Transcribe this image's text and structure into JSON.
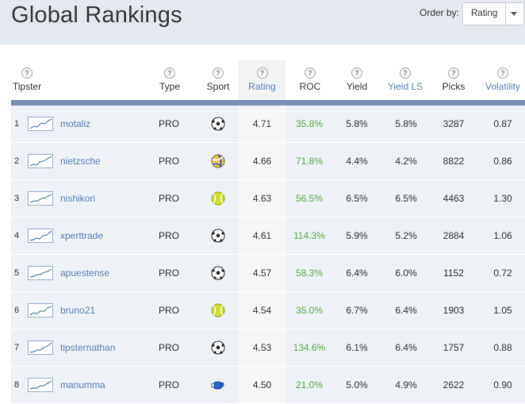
{
  "page": {
    "title": "Global Rankings"
  },
  "order": {
    "label": "Order by:",
    "selected": "Rating"
  },
  "columns": {
    "tipster": "Tipster",
    "type": "Type",
    "sport": "Sport",
    "rating": "Rating",
    "roc": "ROC",
    "yield": "Yield",
    "yield_ls": "Yield LS",
    "picks": "Picks",
    "volatility": "Volatility",
    "help_glyph": "?"
  },
  "colors": {
    "accent_link": "#5b7fb4",
    "roc_green": "#5aa84a",
    "header_rule": "#7b8fb3",
    "topbar": "#e4e9ef"
  },
  "rows": [
    {
      "rank": "1",
      "name": "motaliz",
      "type": "PRO",
      "sport": "soccer-ball-icon",
      "rating": "4.71",
      "roc": "35.8%",
      "yield": "5.8%",
      "yield_ls": "5.8%",
      "picks": "3287",
      "volatility": "0.87"
    },
    {
      "rank": "2",
      "name": "nietzsche",
      "type": "PRO",
      "sport": "volleyball-icon",
      "rating": "4.66",
      "roc": "71.8%",
      "yield": "4.4%",
      "yield_ls": "4.2%",
      "picks": "8822",
      "volatility": "0.86"
    },
    {
      "rank": "3",
      "name": "nishikori",
      "type": "PRO",
      "sport": "tennis-ball-icon",
      "rating": "4.63",
      "roc": "56.5%",
      "yield": "6.5%",
      "yield_ls": "6.5%",
      "picks": "4463",
      "volatility": "1.30"
    },
    {
      "rank": "4",
      "name": "xperttrade",
      "type": "PRO",
      "sport": "soccer-ball-icon",
      "rating": "4.61",
      "roc": "114.3%",
      "yield": "5.9%",
      "yield_ls": "5.2%",
      "picks": "2884",
      "volatility": "1.06"
    },
    {
      "rank": "5",
      "name": "apuestense",
      "type": "PRO",
      "sport": "soccer-ball-icon",
      "rating": "4.57",
      "roc": "58.3%",
      "yield": "6.4%",
      "yield_ls": "6.0%",
      "picks": "1152",
      "volatility": "0.72"
    },
    {
      "rank": "6",
      "name": "bruno21",
      "type": "PRO",
      "sport": "tennis-ball-icon",
      "rating": "4.54",
      "roc": "35.0%",
      "yield": "6.7%",
      "yield_ls": "6.4%",
      "picks": "1903",
      "volatility": "1.05"
    },
    {
      "rank": "7",
      "name": "tipsternathan",
      "type": "PRO",
      "sport": "soccer-ball-icon",
      "rating": "4.53",
      "roc": "134.6%",
      "yield": "6.1%",
      "yield_ls": "6.4%",
      "picks": "1757",
      "volatility": "0.88"
    },
    {
      "rank": "8",
      "name": "manumma",
      "type": "PRO",
      "sport": "boxing-glove-icon",
      "rating": "4.50",
      "roc": "21.0%",
      "yield": "5.0%",
      "yield_ls": "4.9%",
      "picks": "2622",
      "volatility": "0.90"
    }
  ]
}
